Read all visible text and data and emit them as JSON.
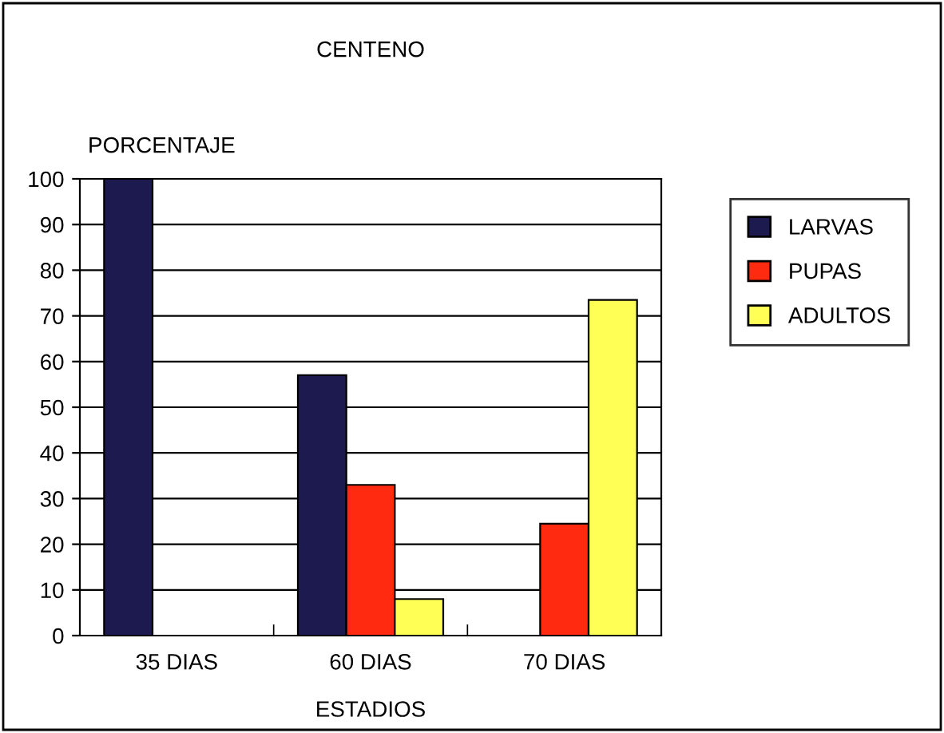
{
  "chart_data": {
    "type": "bar",
    "title": "CENTENO",
    "xlabel": "ESTADIOS",
    "ylabel": "PORCENTAJE",
    "categories": [
      "35 DIAS",
      "60 DIAS",
      "70 DIAS"
    ],
    "series": [
      {
        "name": "LARVAS",
        "color": "#1c1a4e",
        "values": [
          100,
          57,
          null
        ]
      },
      {
        "name": "PUPAS",
        "color": "#ff2a10",
        "values": [
          null,
          33,
          24.5
        ]
      },
      {
        "name": "ADULTOS",
        "color": "#ffff55",
        "values": [
          null,
          8,
          73.5
        ]
      }
    ],
    "ylim": [
      0,
      100
    ],
    "yticks": [
      0,
      10,
      20,
      30,
      40,
      50,
      60,
      70,
      80,
      90,
      100
    ],
    "grid": "y",
    "legend": "right"
  }
}
